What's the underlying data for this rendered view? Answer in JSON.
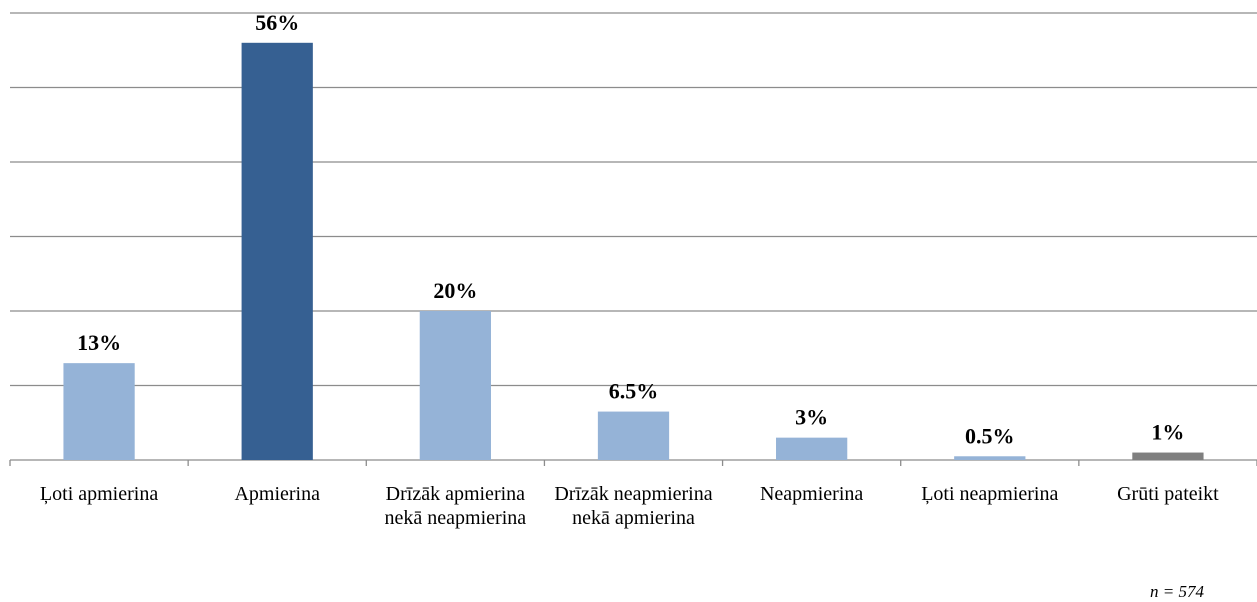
{
  "chart_data": {
    "type": "bar",
    "categories": [
      "Ļoti apmierina",
      "Apmierina",
      "Drīzāk apmierina nekā neapmierina",
      "Drīzāk neapmierina nekā apmierina",
      "Neapmierina",
      "Ļoti neapmierina",
      "Grūti pateikt"
    ],
    "values": [
      13,
      56,
      20,
      6.5,
      3,
      0.5,
      1
    ],
    "value_labels": [
      "13%",
      "56%",
      "20%",
      "6.5%",
      "3%",
      "0.5%",
      "1%"
    ],
    "colors": [
      "#95b3d7",
      "#366092",
      "#95b3d7",
      "#95b3d7",
      "#95b3d7",
      "#95b3d7",
      "#7f7f7f"
    ],
    "ylim": [
      0,
      60
    ],
    "yticks": [
      0,
      10,
      20,
      30,
      40,
      50,
      60
    ],
    "grid": true,
    "note": "n = 574"
  }
}
